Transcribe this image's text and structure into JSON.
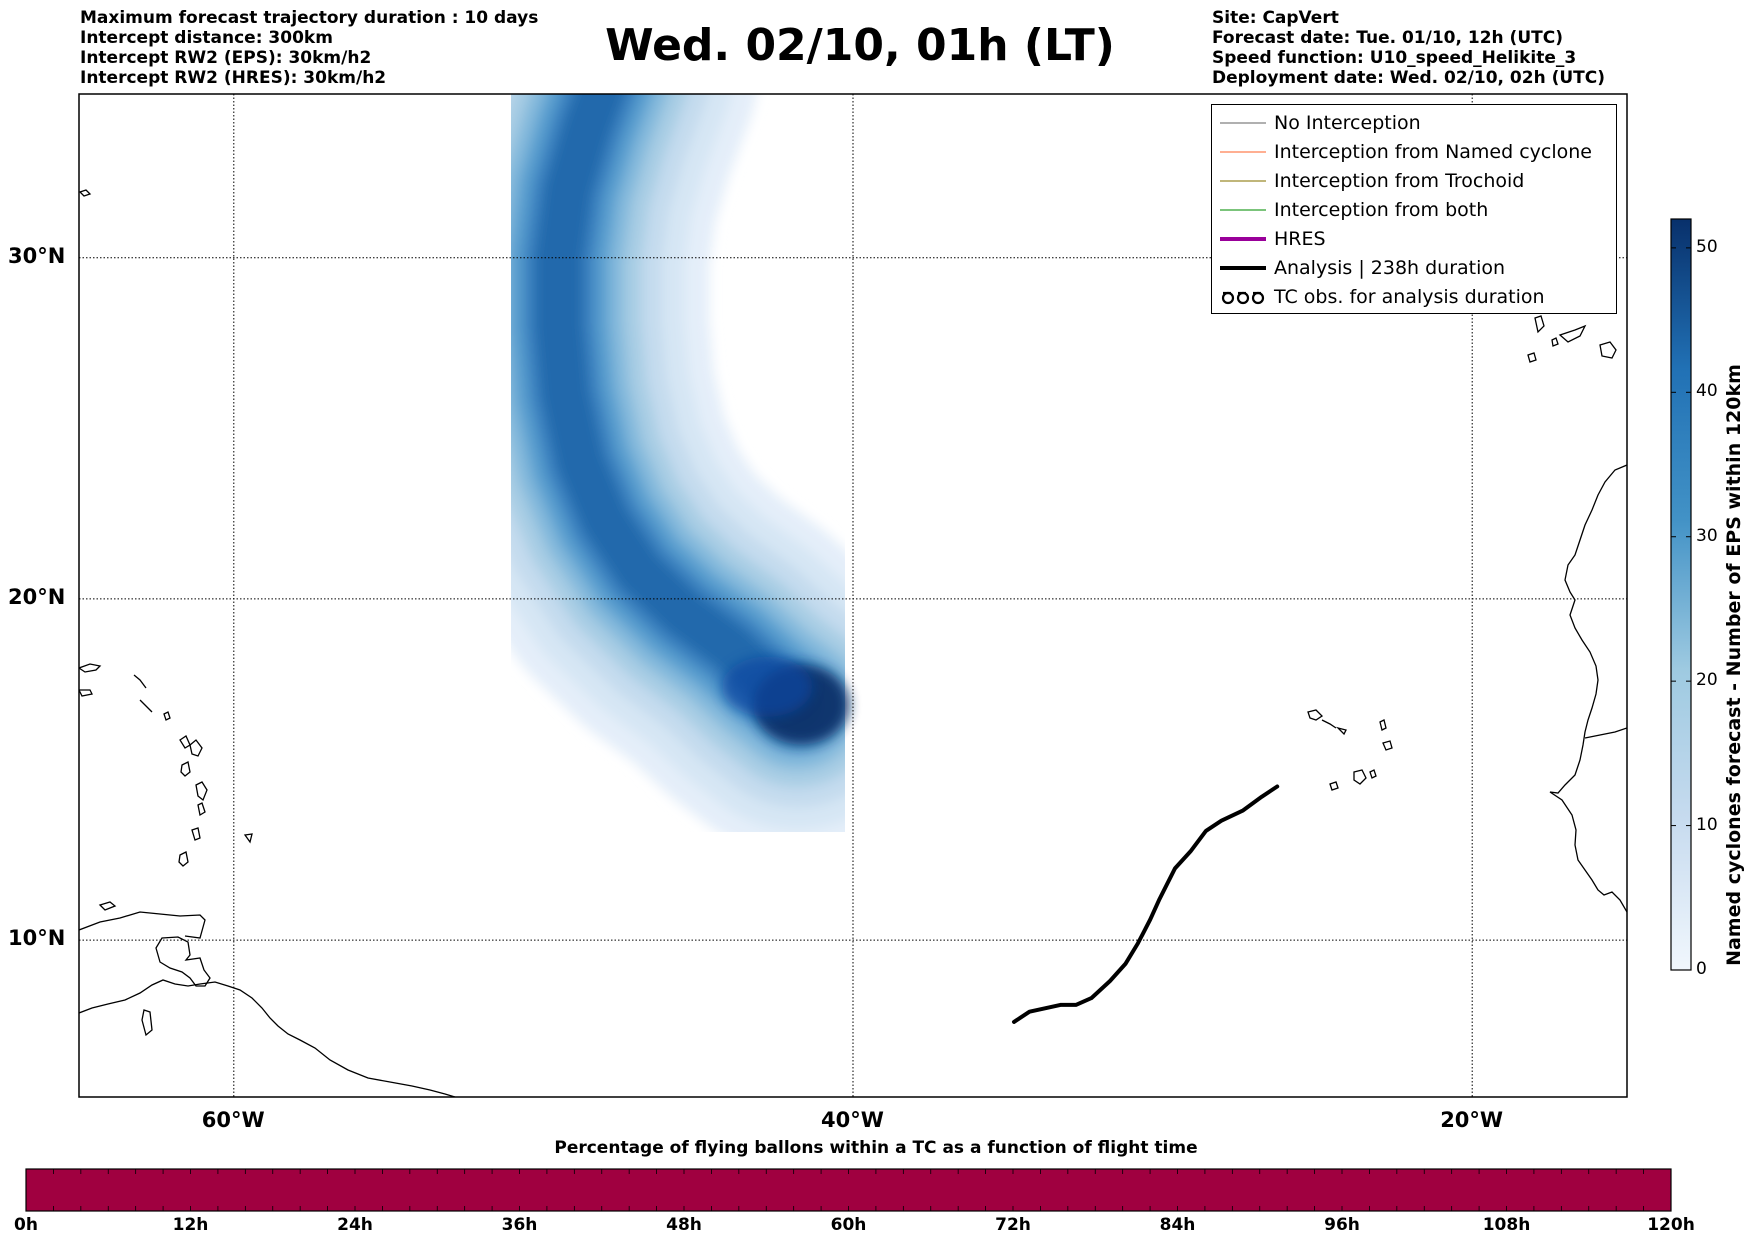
{
  "header_left": [
    "Maximum forecast trajectory duration : 10 days",
    "Intercept distance: 300km",
    "Intercept RW2 (EPS):  30km/h2",
    "Intercept RW2 (HRES): 30km/h2"
  ],
  "header_right": [
    "Site: CapVert",
    "Forecast date: Tue. 01/10, 12h (UTC)",
    "Speed function: U10_speed_Helikite_3",
    "Deployment date: Wed. 02/10, 02h (UTC)"
  ],
  "title": "Wed. 02/10, 01h (LT)",
  "legend": [
    {
      "label": "No Interception",
      "color": "#808080",
      "style": "thin"
    },
    {
      "label": "Interception from Named cyclone",
      "color": "#ff7f50",
      "style": "thin"
    },
    {
      "label": "Interception from Trochoid",
      "color": "#9a8a2a",
      "style": "thin"
    },
    {
      "label": "Interception from both",
      "color": "#2ca02c",
      "style": "thin"
    },
    {
      "label": "HRES",
      "color": "#990099",
      "style": "thick"
    },
    {
      "label": "Analysis | 238h duration",
      "color": "#000000",
      "style": "thick"
    },
    {
      "label": "TC obs. for analysis duration",
      "color": "#000000",
      "style": "tc-symbol"
    }
  ],
  "map": {
    "lon_range": [
      -65,
      -15
    ],
    "lat_range": [
      5.4,
      34.8
    ],
    "lat_labels": [
      "10°N",
      "20°N",
      "30°N"
    ],
    "lat_values": [
      10,
      20,
      30
    ],
    "lon_labels": [
      "60°W",
      "40°W",
      "20°W"
    ],
    "lon_values": [
      -60,
      -40,
      -20
    ],
    "analysis_track": [
      [
        -34.8,
        7.6
      ],
      [
        -34.3,
        7.9
      ],
      [
        -33.8,
        8.0
      ],
      [
        -33.3,
        8.1
      ],
      [
        -32.8,
        8.1
      ],
      [
        -32.3,
        8.3
      ],
      [
        -31.7,
        8.8
      ],
      [
        -31.2,
        9.3
      ],
      [
        -30.8,
        9.9
      ],
      [
        -30.4,
        10.6
      ],
      [
        -30.1,
        11.2
      ],
      [
        -29.6,
        12.1
      ],
      [
        -29.1,
        12.6
      ],
      [
        -28.6,
        13.2
      ],
      [
        -28.1,
        13.5
      ],
      [
        -27.4,
        13.8
      ],
      [
        -26.8,
        14.2
      ],
      [
        -26.3,
        14.5
      ]
    ],
    "plume_centerline": [
      [
        -41.8,
        16.9
      ],
      [
        -42.8,
        17.6
      ],
      [
        -44.0,
        18.6
      ],
      [
        -45.5,
        19.6
      ],
      [
        -46.9,
        20.8
      ],
      [
        -48.0,
        22.3
      ],
      [
        -48.8,
        24.0
      ],
      [
        -49.3,
        26.0
      ],
      [
        -49.5,
        28.0
      ],
      [
        -49.5,
        30.0
      ],
      [
        -49.2,
        32.0
      ],
      [
        -48.6,
        33.8
      ],
      [
        -47.9,
        35.5
      ]
    ],
    "plume_max_value": 52
  },
  "colorbar": {
    "min": 0,
    "max": 52,
    "ticks": [
      0,
      10,
      20,
      30,
      40,
      50
    ],
    "label": "Named cyclones forecast - Number of EPS within 120km",
    "color_low": "#f1f7fd",
    "color_high": "#08306b"
  },
  "bottom_bar": {
    "title": "Percentage of flying ballons within a TC as a function of flight time",
    "ticks": [
      "0h",
      "12h",
      "24h",
      "36h",
      "48h",
      "60h",
      "72h",
      "84h",
      "96h",
      "108h",
      "120h"
    ],
    "color": "#a00040"
  }
}
